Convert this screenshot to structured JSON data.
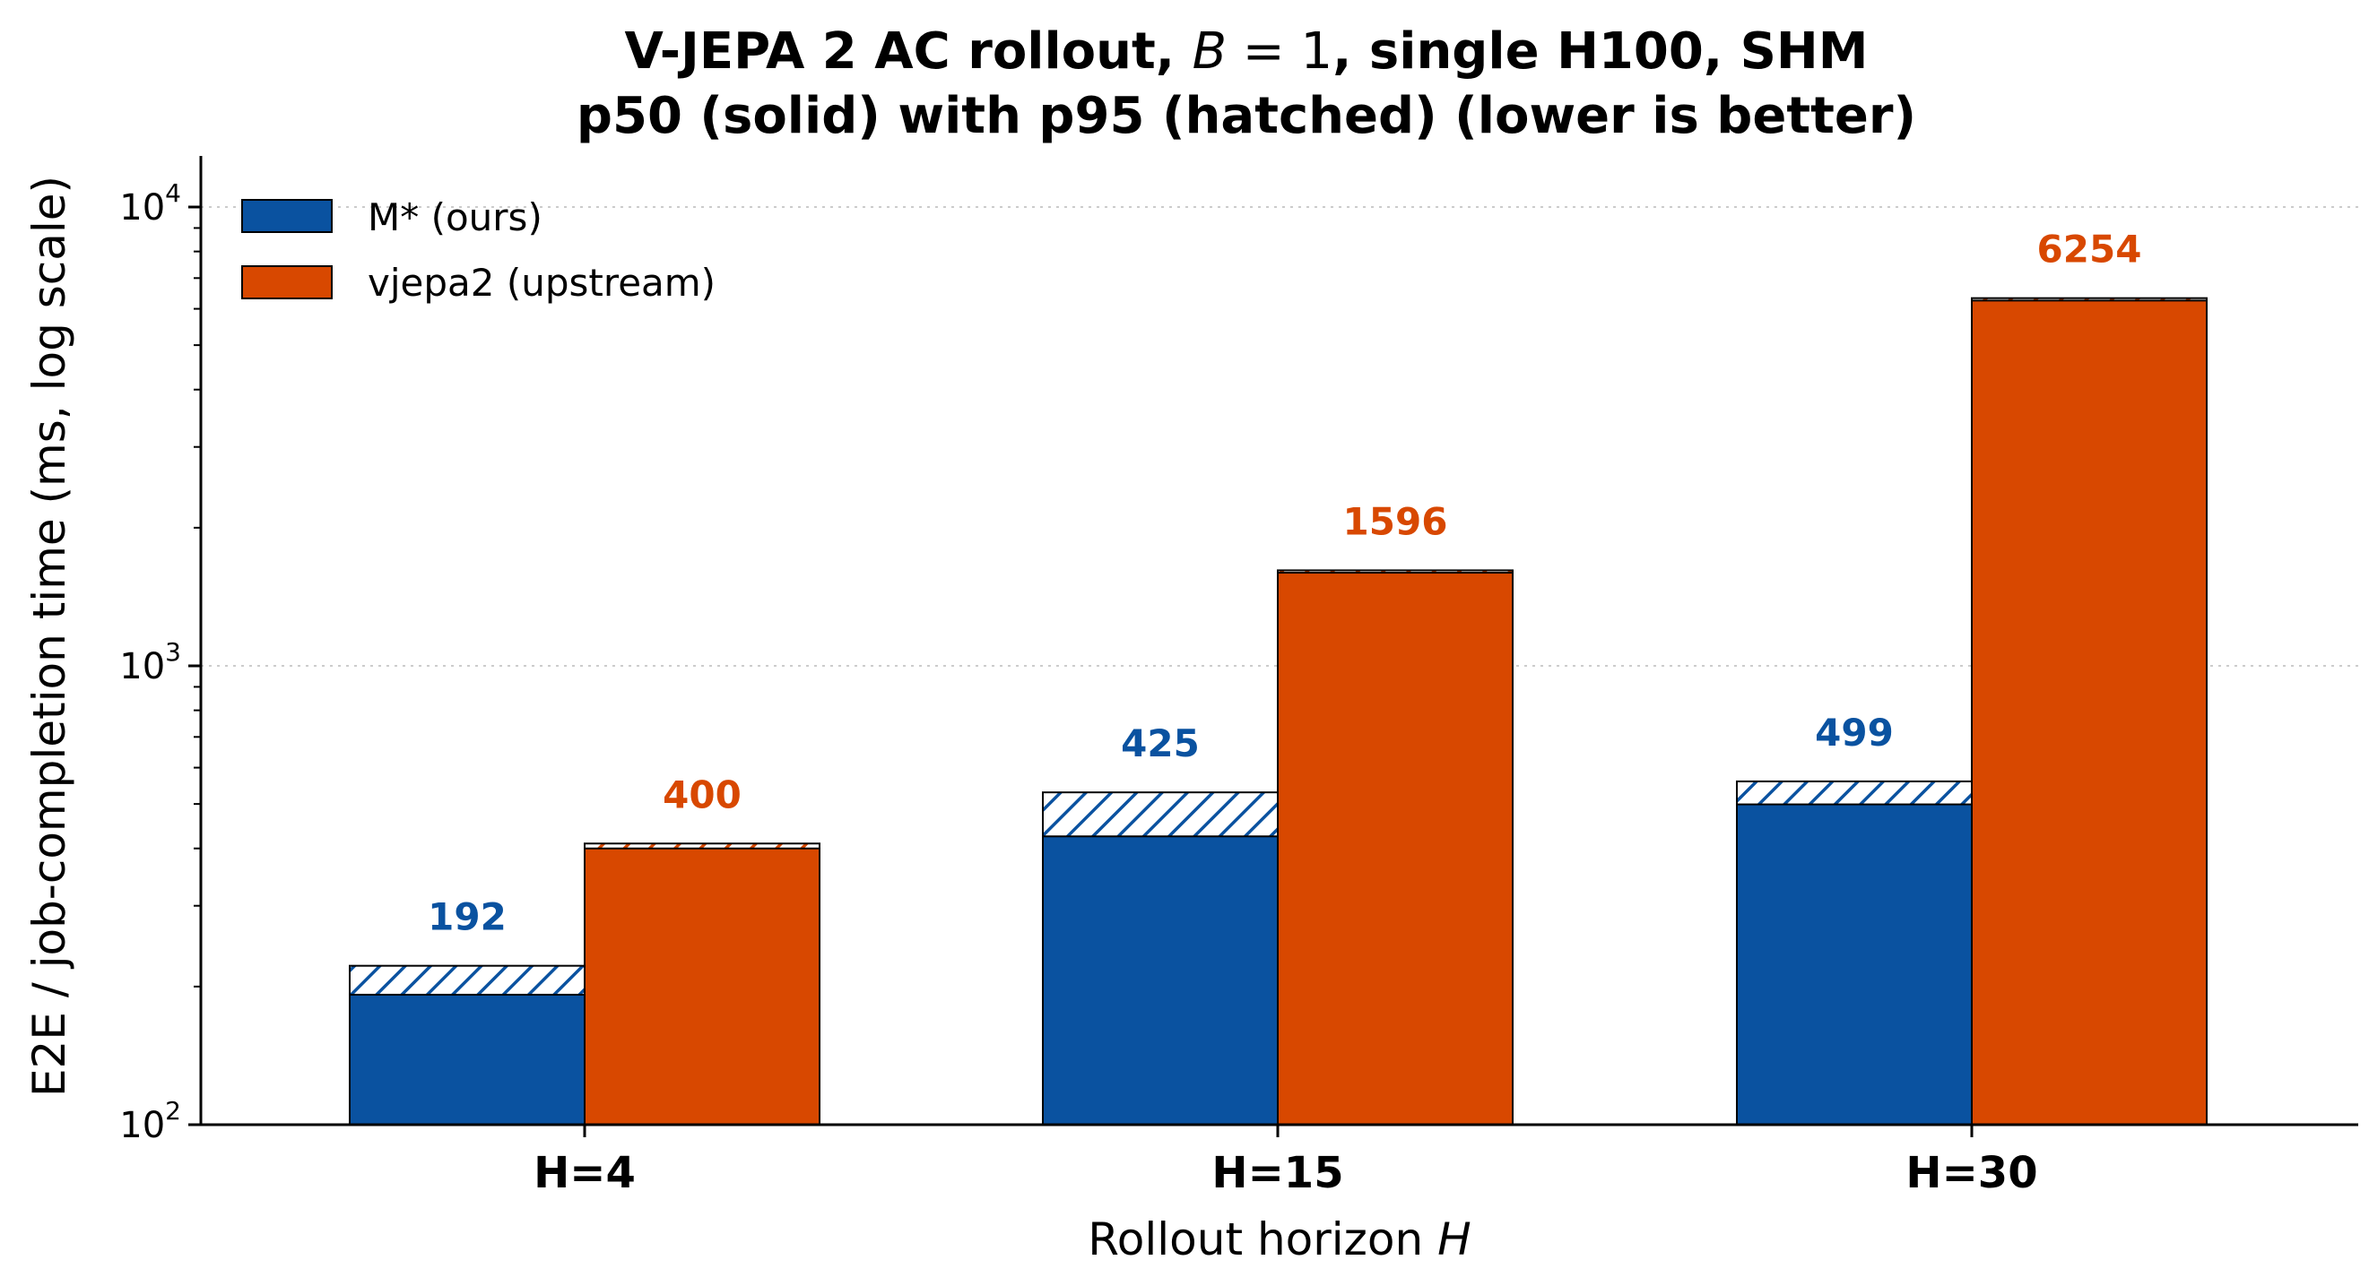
{
  "chart_data": {
    "type": "bar",
    "title_line1": "V-JEPA 2 AC rollout, B = 1, single H100, SHM",
    "title_line1_parts": [
      "V-JEPA 2 AC rollout, ",
      "B",
      " = 1",
      ", single H100, SHM"
    ],
    "title_line2": "p50 (solid) with p95 (hatched)  (lower is better)",
    "xlabel_parts": [
      "Rollout horizon ",
      "H"
    ],
    "ylabel": "E2E / job-completion time (ms, log scale)",
    "yscale": "log",
    "ylim": [
      100,
      13000
    ],
    "yticks": [
      {
        "value": 100,
        "base": "10",
        "exp": "2"
      },
      {
        "value": 1000,
        "base": "10",
        "exp": "3"
      },
      {
        "value": 10000,
        "base": "10",
        "exp": "4"
      }
    ],
    "grid": "horizontal dotted at major ticks",
    "categories": [
      "H=4",
      "H=15",
      "H=30"
    ],
    "series": [
      {
        "name": "M* (ours)",
        "color": "#0a52a0",
        "p50": [
          192,
          425,
          499
        ],
        "p95": [
          222,
          530,
          560
        ],
        "labels": [
          "192",
          "425",
          "499"
        ]
      },
      {
        "name": "vjepa2 (upstream)",
        "color": "#d84800",
        "p50": [
          400,
          1596,
          6254
        ],
        "p95": [
          410,
          1615,
          6330
        ],
        "labels": [
          "400",
          "1596",
          "6254"
        ]
      }
    ],
    "legend_position": "top-left"
  }
}
